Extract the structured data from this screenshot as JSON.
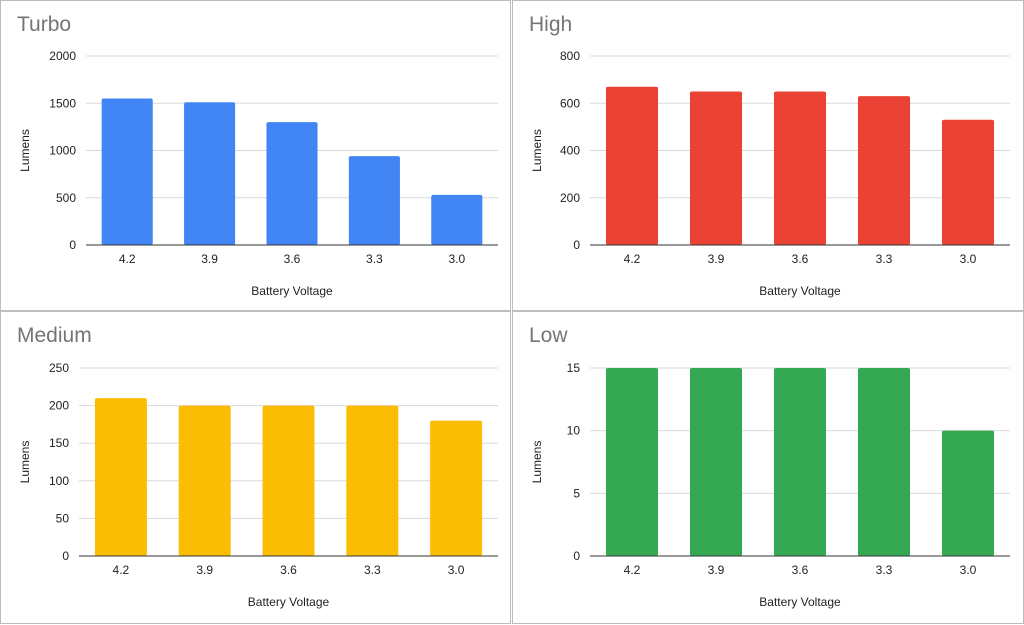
{
  "chart_data": [
    {
      "type": "bar",
      "title": "Turbo",
      "xlabel": "Battery Voltage",
      "ylabel": "Lumens",
      "categories": [
        "4.2",
        "3.9",
        "3.6",
        "3.3",
        "3.0"
      ],
      "values": [
        1550,
        1510,
        1300,
        940,
        530
      ],
      "ylim": [
        0,
        2000
      ],
      "yticks": [
        0,
        500,
        1000,
        1500,
        2000
      ],
      "color": "#4285f4",
      "grid": true
    },
    {
      "type": "bar",
      "title": "High",
      "xlabel": "Battery Voltage",
      "ylabel": "Lumens",
      "categories": [
        "4.2",
        "3.9",
        "3.6",
        "3.3",
        "3.0"
      ],
      "values": [
        670,
        650,
        650,
        630,
        530
      ],
      "ylim": [
        0,
        800
      ],
      "yticks": [
        0,
        200,
        400,
        600,
        800
      ],
      "color": "#ea4335",
      "grid": true
    },
    {
      "type": "bar",
      "title": "Medium",
      "xlabel": "Battery Voltage",
      "ylabel": "Lumens",
      "categories": [
        "4.2",
        "3.9",
        "3.6",
        "3.3",
        "3.0"
      ],
      "values": [
        210,
        200,
        200,
        200,
        180
      ],
      "ylim": [
        0,
        250
      ],
      "yticks": [
        0,
        50,
        100,
        150,
        200,
        250
      ],
      "color": "#fbbc04",
      "grid": true
    },
    {
      "type": "bar",
      "title": "Low",
      "xlabel": "Battery Voltage",
      "ylabel": "Lumens",
      "categories": [
        "4.2",
        "3.9",
        "3.6",
        "3.3",
        "3.0"
      ],
      "values": [
        15,
        15,
        15,
        15,
        10
      ],
      "ylim": [
        0,
        15
      ],
      "yticks": [
        0,
        5,
        10,
        15
      ],
      "color": "#34a853",
      "grid": true
    }
  ]
}
